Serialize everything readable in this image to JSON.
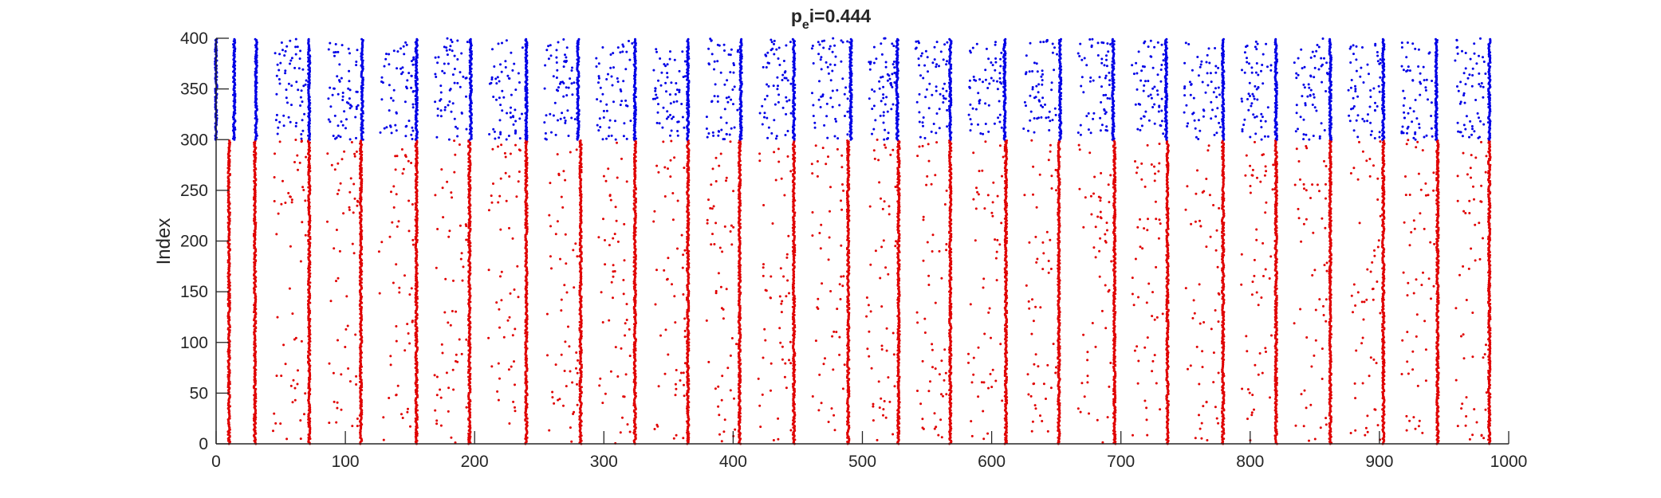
{
  "chart_data": {
    "type": "scatter",
    "title": {
      "main": "p",
      "subscript": "e",
      "rest": "i=0.444"
    },
    "xlabel": "",
    "ylabel": "Index",
    "xlim": [
      0,
      1000
    ],
    "ylim": [
      0,
      400
    ],
    "xticks": [
      0,
      100,
      200,
      300,
      400,
      500,
      600,
      700,
      800,
      900,
      1000
    ],
    "yticks": [
      0,
      50,
      100,
      150,
      200,
      250,
      300,
      350,
      400
    ],
    "grid": false,
    "legend": "none",
    "series": [
      {
        "color": "#e00000",
        "index_range": [
          0,
          300
        ],
        "volley_times": [
          10,
          30,
          72,
          112,
          155,
          196,
          240,
          282,
          324,
          365,
          405,
          447,
          489,
          528,
          568,
          611,
          652,
          695,
          736,
          779,
          820,
          862,
          903,
          945,
          985
        ],
        "sparse_density": 55
      },
      {
        "color": "#0000e6",
        "index_range": [
          300,
          400
        ],
        "volley_times": [
          0,
          14,
          31,
          72,
          113,
          155,
          197,
          240,
          280,
          324,
          365,
          406,
          447,
          491,
          527,
          568,
          610,
          653,
          694,
          735,
          779,
          820,
          862,
          903,
          944,
          985
        ],
        "sparse_density": 60
      }
    ]
  }
}
